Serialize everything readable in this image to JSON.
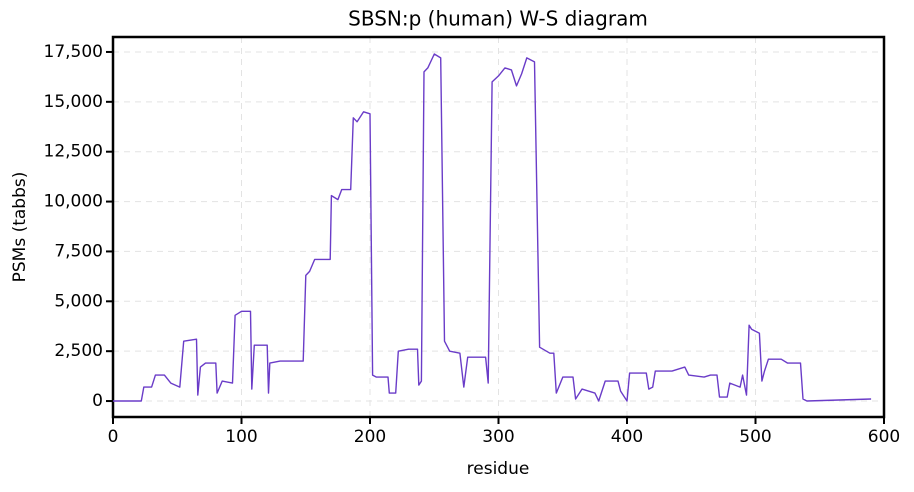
{
  "chart_data": {
    "type": "line",
    "title": "SBSN:p (human) W-S diagram",
    "x_label": "residue",
    "y_label": "PSMs (tabbs)",
    "color": "#6a3cc8",
    "grid": true,
    "xlim": [
      0,
      600
    ],
    "ylim": [
      -800,
      18250
    ],
    "xticks": [
      0,
      100,
      200,
      300,
      400,
      500,
      600
    ],
    "yticks": [
      0,
      {
        "value": 2500,
        "label": "2,500"
      },
      {
        "value": 5000,
        "label": "5,000"
      },
      {
        "value": 7500,
        "label": "7,500"
      },
      {
        "value": 10000,
        "label": "10,000"
      },
      {
        "value": 12500,
        "label": "12,500"
      },
      {
        "value": 15000,
        "label": "15,000"
      },
      {
        "value": 17500,
        "label": "17,500"
      }
    ],
    "x": [
      0,
      22,
      24,
      30,
      33,
      40,
      45,
      52,
      55,
      65,
      66,
      68,
      72,
      80,
      81,
      85,
      93,
      95,
      100,
      107,
      108,
      110,
      120,
      121,
      122,
      130,
      148,
      150,
      153,
      157,
      169,
      170,
      175,
      178,
      185,
      187,
      190,
      195,
      200,
      202,
      205,
      214,
      215,
      220,
      222,
      230,
      237,
      238,
      240,
      242,
      245,
      250,
      255,
      258,
      262,
      270,
      273,
      276,
      290,
      292,
      295,
      300,
      305,
      310,
      314,
      318,
      322,
      328,
      332,
      340,
      343,
      345,
      350,
      358,
      360,
      365,
      375,
      378,
      383,
      393,
      395,
      400,
      402,
      415,
      417,
      420,
      422,
      435,
      440,
      445,
      448,
      460,
      465,
      470,
      472,
      478,
      480,
      488,
      490,
      493,
      495,
      497,
      503,
      505,
      507,
      510,
      520,
      525,
      535,
      537,
      540,
      590
    ],
    "values": [
      0,
      0,
      700,
      700,
      1300,
      1300,
      900,
      700,
      3000,
      3100,
      300,
      1700,
      1900,
      1900,
      400,
      1000,
      900,
      4300,
      4500,
      4500,
      600,
      2800,
      2800,
      400,
      1900,
      2000,
      2000,
      6300,
      6500,
      7100,
      7100,
      10300,
      10100,
      10600,
      10600,
      14200,
      14000,
      14500,
      14400,
      1300,
      1200,
      1200,
      400,
      400,
      2500,
      2600,
      2600,
      800,
      1000,
      16500,
      16700,
      17400,
      17200,
      3000,
      2500,
      2400,
      700,
      2200,
      2200,
      900,
      16000,
      16300,
      16700,
      16600,
      15800,
      16400,
      17200,
      17000,
      2700,
      2400,
      2400,
      400,
      1200,
      1200,
      100,
      600,
      400,
      0,
      1000,
      1000,
      500,
      0,
      1400,
      1400,
      600,
      700,
      1500,
      1500,
      1600,
      1700,
      1300,
      1200,
      1300,
      1300,
      200,
      200,
      900,
      700,
      1300,
      300,
      3800,
      3600,
      3400,
      1000,
      1500,
      2100,
      2100,
      1900,
      1900,
      100,
      0,
      100
    ]
  }
}
